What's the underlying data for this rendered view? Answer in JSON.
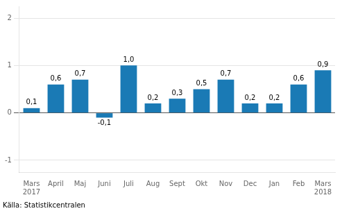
{
  "chart_data": {
    "type": "bar",
    "categories": [
      "Mars\n2017",
      "April",
      "Maj",
      "Juni",
      "Juli",
      "Aug",
      "Sept",
      "Okt",
      "Nov",
      "Dec",
      "Jan",
      "Feb",
      "Mars\n2018"
    ],
    "values": [
      0.1,
      0.6,
      0.7,
      -0.1,
      1.0,
      0.2,
      0.3,
      0.5,
      0.7,
      0.2,
      0.2,
      0.6,
      0.9
    ],
    "value_labels": [
      "0,1",
      "0,6",
      "0,7",
      "-0,1",
      "1,0",
      "0,2",
      "0,3",
      "0,5",
      "0,7",
      "0,2",
      "0,2",
      "0,6",
      "0,9"
    ],
    "data_labels": true,
    "color": "#1a7ab5",
    "ylim": [
      -1.25,
      2.25
    ],
    "yticks": [
      -1,
      0,
      1,
      2
    ],
    "grid": true,
    "annotations": [
      "Källa: Statistikcentralen"
    ]
  }
}
